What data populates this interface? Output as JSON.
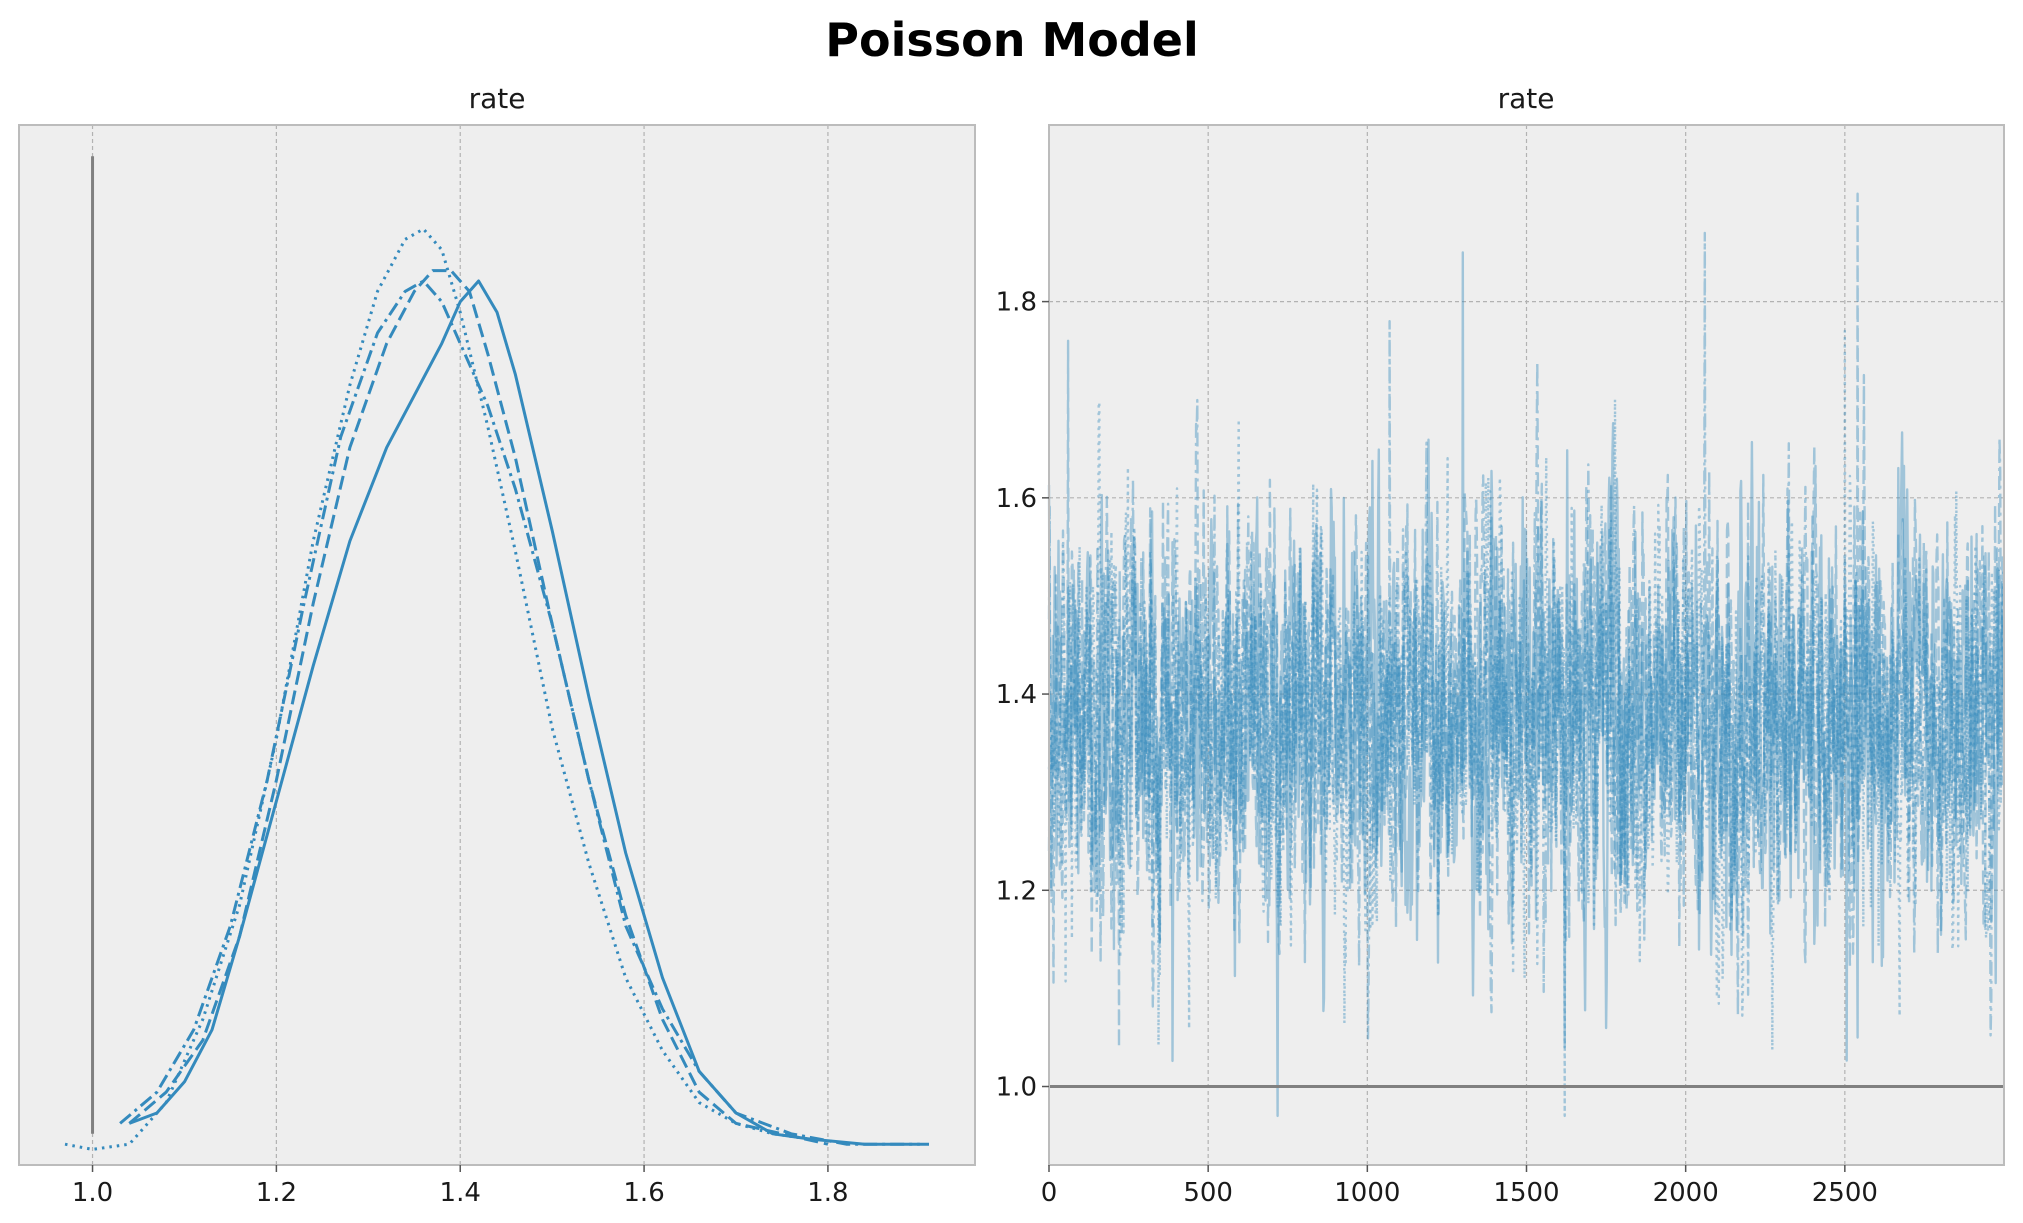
{
  "figure": {
    "title": "Poisson Model"
  },
  "colors": {
    "background": "#ffffff",
    "axes_face": "#eeeeee",
    "grid": "#b2b2b2",
    "spine": "#bcbcbc",
    "series": "#348abd",
    "reference_line": "#808080"
  },
  "chart_data": [
    {
      "type": "line",
      "subplot": "density",
      "title": "rate",
      "xlabel": "",
      "ylabel": "",
      "xlim": [
        0.92,
        1.96
      ],
      "ylim": [
        0,
        1
      ],
      "xticks": [
        "1.0",
        "1.2",
        "1.4",
        "1.6",
        "1.8"
      ],
      "yticks": [],
      "grid": "x",
      "reference_line": {
        "x": 1.0,
        "y_range": [
          0.03,
          0.97
        ]
      },
      "series": [
        {
          "linestyle": "solid",
          "x": [
            1.04,
            1.07,
            1.1,
            1.13,
            1.16,
            1.2,
            1.24,
            1.28,
            1.32,
            1.35,
            1.38,
            1.4,
            1.42,
            1.44,
            1.46,
            1.5,
            1.54,
            1.58,
            1.62,
            1.66,
            1.7,
            1.74,
            1.78,
            1.84,
            1.9
          ],
          "y": [
            0.04,
            0.05,
            0.08,
            0.13,
            0.22,
            0.35,
            0.48,
            0.6,
            0.69,
            0.74,
            0.79,
            0.83,
            0.85,
            0.82,
            0.76,
            0.61,
            0.45,
            0.3,
            0.18,
            0.09,
            0.05,
            0.03,
            0.025,
            0.02,
            0.02
          ]
        },
        {
          "linestyle": "dotted",
          "x": [
            0.97,
            1.0,
            1.04,
            1.08,
            1.12,
            1.16,
            1.2,
            1.24,
            1.28,
            1.31,
            1.34,
            1.36,
            1.38,
            1.4,
            1.43,
            1.46,
            1.5,
            1.54,
            1.58,
            1.62,
            1.66,
            1.7,
            1.74,
            1.78
          ],
          "y": [
            0.02,
            0.015,
            0.02,
            0.06,
            0.14,
            0.25,
            0.41,
            0.6,
            0.75,
            0.84,
            0.89,
            0.9,
            0.88,
            0.82,
            0.71,
            0.59,
            0.42,
            0.29,
            0.18,
            0.11,
            0.06,
            0.04,
            0.03,
            0.025
          ]
        },
        {
          "linestyle": "dashed",
          "x": [
            1.04,
            1.08,
            1.12,
            1.16,
            1.2,
            1.24,
            1.28,
            1.32,
            1.35,
            1.37,
            1.39,
            1.41,
            1.43,
            1.46,
            1.5,
            1.54,
            1.58,
            1.62,
            1.66,
            1.7,
            1.75,
            1.8
          ],
          "y": [
            0.04,
            0.07,
            0.12,
            0.22,
            0.37,
            0.54,
            0.69,
            0.79,
            0.84,
            0.86,
            0.86,
            0.84,
            0.78,
            0.68,
            0.52,
            0.37,
            0.24,
            0.14,
            0.07,
            0.04,
            0.03,
            0.02
          ]
        },
        {
          "linestyle": "dashdot",
          "x": [
            1.03,
            1.07,
            1.11,
            1.15,
            1.19,
            1.23,
            1.27,
            1.31,
            1.34,
            1.36,
            1.38,
            1.4,
            1.43,
            1.46,
            1.5,
            1.54,
            1.58,
            1.62,
            1.66,
            1.7,
            1.76,
            1.82,
            1.91
          ],
          "y": [
            0.04,
            0.07,
            0.13,
            0.23,
            0.37,
            0.54,
            0.7,
            0.8,
            0.84,
            0.85,
            0.83,
            0.79,
            0.73,
            0.65,
            0.52,
            0.37,
            0.23,
            0.15,
            0.09,
            0.05,
            0.03,
            0.02,
            0.02
          ]
        }
      ]
    },
    {
      "type": "line",
      "subplot": "trace",
      "title": "rate",
      "xlabel": "",
      "ylabel": "",
      "xlim": [
        0,
        3000
      ],
      "ylim": [
        0.92,
        1.98
      ],
      "xticks": [
        "0",
        "500",
        "1000",
        "1500",
        "2000",
        "2500"
      ],
      "yticks": [
        "1.0",
        "1.2",
        "1.4",
        "1.6",
        "1.8"
      ],
      "grid": "both",
      "reference_line": {
        "y": 1.0
      },
      "series_summary": {
        "draws_per_chain": 3000,
        "chains": 4,
        "center": 1.38,
        "typical_range": [
          1.2,
          1.6
        ],
        "min": 0.97,
        "max": 1.91
      },
      "series": [
        {
          "linestyle": "solid",
          "spikes": [
            {
              "x": 1300,
              "y": 1.85
            },
            {
              "x": 1620,
              "y": 1.04
            },
            {
              "x": 2540,
              "y": 1.05
            }
          ]
        },
        {
          "linestyle": "dotted",
          "spikes": [
            {
              "x": 1620,
              "y": 0.97
            },
            {
              "x": 2500,
              "y": 1.77
            }
          ]
        },
        {
          "linestyle": "dashed",
          "spikes": [
            {
              "x": 60,
              "y": 1.76
            },
            {
              "x": 220,
              "y": 1.04
            },
            {
              "x": 2540,
              "y": 1.91
            }
          ]
        },
        {
          "linestyle": "dashdot",
          "spikes": [
            {
              "x": 2060,
              "y": 1.87
            },
            {
              "x": 1070,
              "y": 1.78
            }
          ]
        }
      ]
    }
  ]
}
